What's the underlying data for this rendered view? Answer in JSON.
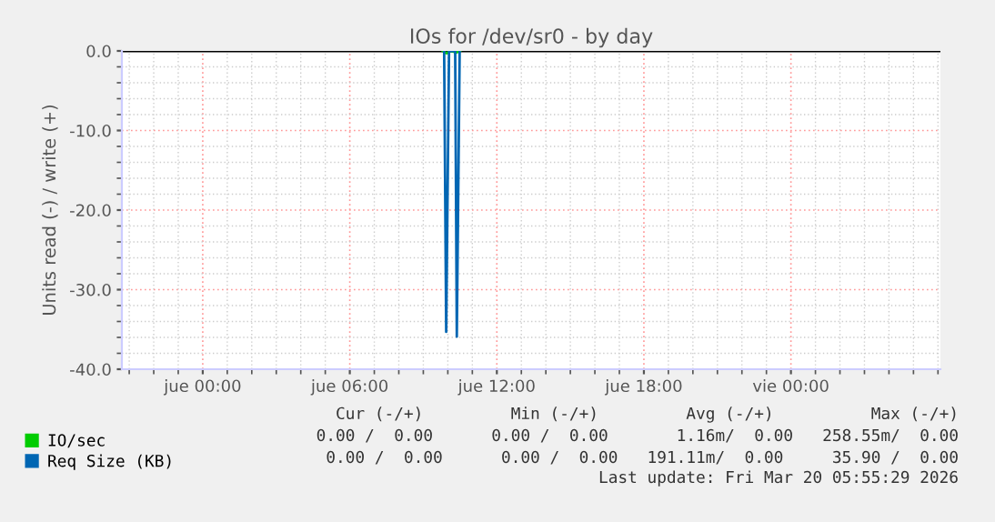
{
  "chart_data": {
    "type": "line",
    "title": "IOs for /dev/sr0 - by day",
    "ylabel": "Units read (-) / write (+)",
    "xlim": [
      "2026-03-18T20:42",
      "2026-03-20T06:06"
    ],
    "xticks": [
      {
        "value": "2026-03-19T00:00",
        "label": "jue 00:00"
      },
      {
        "value": "2026-03-19T06:00",
        "label": "jue 06:00"
      },
      {
        "value": "2026-03-19T12:00",
        "label": "jue 12:00"
      },
      {
        "value": "2026-03-19T18:00",
        "label": "jue 18:00"
      },
      {
        "value": "2026-03-20T00:00",
        "label": "vie 00:00"
      }
    ],
    "ylim": [
      -40,
      0
    ],
    "yticks": [
      {
        "value": -40,
        "label": "-40.0"
      },
      {
        "value": -30,
        "label": "-30.0"
      },
      {
        "value": -20,
        "label": "-20.0"
      },
      {
        "value": -10,
        "label": "-10.0"
      },
      {
        "value": 0,
        "label": "0.0"
      }
    ],
    "grid": true,
    "legend": "bottom left",
    "ref_lines": [
      {
        "axis": "y",
        "value": 0,
        "color": "#000000"
      }
    ],
    "series": [
      {
        "name": "IO/sec",
        "color": "#00cc00",
        "x": [
          "2026-03-19T09:48",
          "2026-03-19T09:57",
          "2026-03-19T10:06",
          "2026-03-19T10:21",
          "2026-03-19T10:30"
        ],
        "values": [
          0,
          -0.3,
          0,
          -0.2,
          0
        ]
      },
      {
        "name": "Req Size (KB)",
        "color": "#0066b3",
        "x": [
          "2026-03-19T09:51",
          "2026-03-19T09:56",
          "2026-03-19T10:03",
          "2026-03-19T10:18",
          "2026-03-19T10:22",
          "2026-03-19T10:29"
        ],
        "values": [
          0,
          -35.3,
          0,
          0,
          -35.9,
          0
        ]
      }
    ],
    "annotations": [
      "Cur (-/+)         Min (-/+)         Avg (-/+)          Max (-/+)",
      "0.00 /  0.00      0.00 /  0.00       1.16m/  0.00   258.55m/  0.00",
      "0.00 /  0.00      0.00 /  0.00   191.11m/  0.00     35.90 /  0.00",
      "Last update: Fri Mar 20 05:55:29 2026"
    ]
  }
}
